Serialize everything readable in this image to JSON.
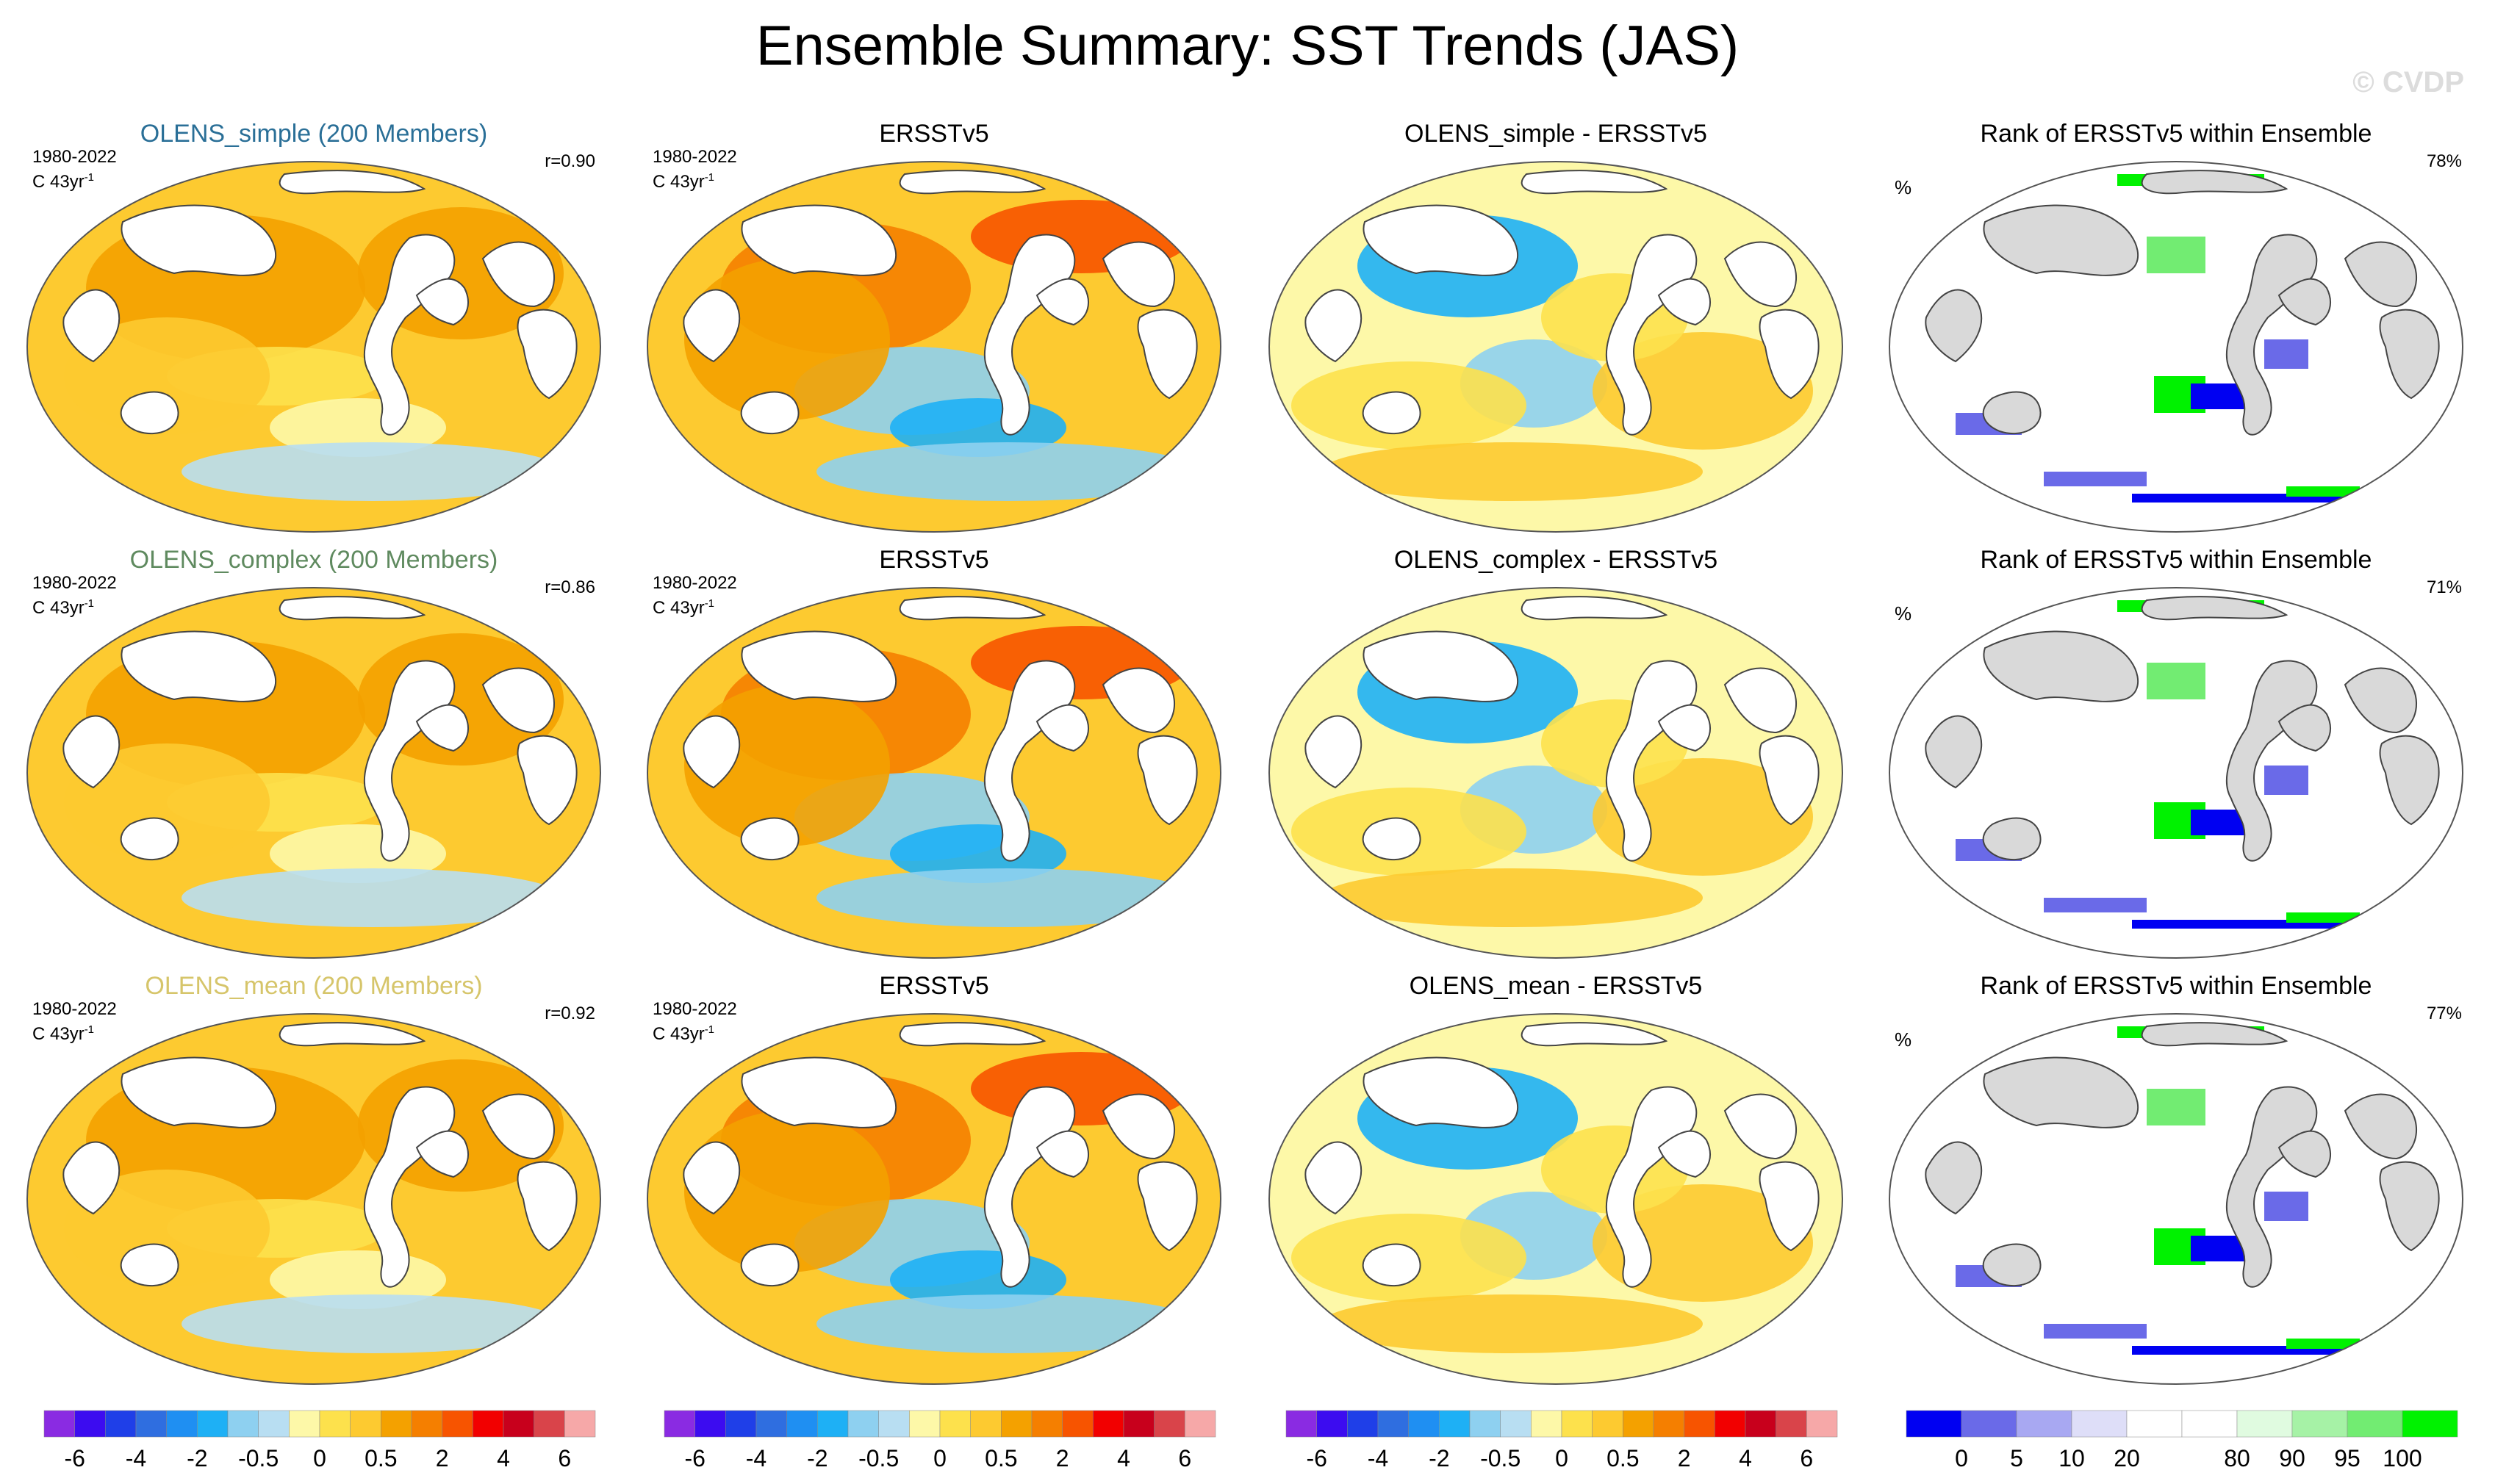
{
  "title": "Ensemble Summary: SST Trends (JAS)",
  "watermark": "© CVDP",
  "rows": [
    {
      "model": {
        "title": "OLENS_simple (200 Members)",
        "title_color": "#2a6f97",
        "period": "1980-2022",
        "units_base": "C 43yr",
        "units_exp": "-1",
        "r_label": "r=0.90"
      },
      "obs": {
        "title": "ERSSTv5",
        "period": "1980-2022",
        "units_base": "C 43yr",
        "units_exp": "-1"
      },
      "diff": {
        "title": "OLENS_simple - ERSSTv5"
      },
      "rank": {
        "title": "Rank of ERSSTv5 within Ensemble",
        "left_label": "%",
        "right_label": "78%"
      }
    },
    {
      "model": {
        "title": "OLENS_complex (200 Members)",
        "title_color": "#5f8a5f",
        "period": "1980-2022",
        "units_base": "C 43yr",
        "units_exp": "-1",
        "r_label": "r=0.86"
      },
      "obs": {
        "title": "ERSSTv5",
        "period": "1980-2022",
        "units_base": "C 43yr",
        "units_exp": "-1"
      },
      "diff": {
        "title": "OLENS_complex - ERSSTv5"
      },
      "rank": {
        "title": "Rank of ERSSTv5 within Ensemble",
        "left_label": "%",
        "right_label": "71%"
      }
    },
    {
      "model": {
        "title": "OLENS_mean (200 Members)",
        "title_color": "#d6c56a",
        "period": "1980-2022",
        "units_base": "C 43yr",
        "units_exp": "-1",
        "r_label": "r=0.92"
      },
      "obs": {
        "title": "ERSSTv5",
        "period": "1980-2022",
        "units_base": "C 43yr",
        "units_exp": "-1"
      },
      "diff": {
        "title": "OLENS_mean - ERSSTv5"
      },
      "rank": {
        "title": "Rank of ERSSTv5 within Ensemble",
        "left_label": "%",
        "right_label": "77%"
      }
    }
  ],
  "chart_data": [
    {
      "type": "heatmap",
      "variable": "SST trend",
      "season": "JAS",
      "period": "1980-2022",
      "units": "C 43yr-1",
      "trend_colorbar": {
        "colors": [
          "#8a2be2",
          "#3c0cf0",
          "#1f3fe8",
          "#2f6ee0",
          "#1f8ff2",
          "#1eb0f5",
          "#8ed0f0",
          "#b8def2",
          "#fdf8a8",
          "#fde14c",
          "#fdca30",
          "#f4a100",
          "#f57f00",
          "#f75400",
          "#f20000",
          "#c8001c",
          "#d9444a",
          "#f6a8a8"
        ],
        "tick_labels": [
          "-6",
          "-4",
          "-2",
          "-0.5",
          "0",
          "0.5",
          "2",
          "4",
          "6"
        ]
      },
      "rank_colorbar": {
        "colors": [
          "#0000f2",
          "#6a6ae8",
          "#a8a8f2",
          "#dedef8",
          "#ffffff",
          "#ffffff",
          "#e0fbe0",
          "#a6f2a6",
          "#72ec72",
          "#00f200"
        ],
        "tick_labels": [
          "0",
          "5",
          "10",
          "20",
          "80",
          "90",
          "95",
          "100"
        ]
      },
      "pattern_correlations": [
        {
          "series": "OLENS_simple",
          "r": 0.9
        },
        {
          "series": "OLENS_complex",
          "r": 0.86
        },
        {
          "series": "OLENS_mean",
          "r": 0.92
        }
      ],
      "rank_area_percent": [
        {
          "series": "OLENS_simple",
          "value": 78
        },
        {
          "series": "OLENS_complex",
          "value": 71
        },
        {
          "series": "OLENS_mean",
          "value": 77
        }
      ]
    }
  ]
}
